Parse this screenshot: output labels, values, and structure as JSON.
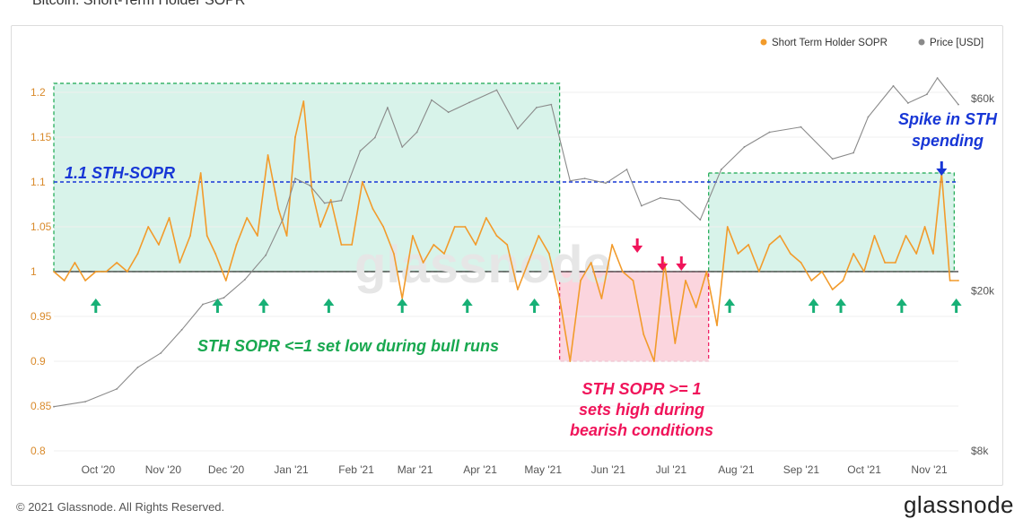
{
  "title": "Bitcoin: Short-Term Holder SOPR",
  "footer": {
    "copyright": "© 2021 Glassnode. All Rights Reserved.",
    "logo": "glassnode",
    "watermark": "glassnode"
  },
  "legend": {
    "items": [
      {
        "label": "Short Term Holder SOPR",
        "color": "#f29b2b"
      },
      {
        "label": "Price [USD]",
        "color": "#8a8a8a"
      }
    ],
    "placement": "top-right"
  },
  "annotations": {
    "threshold_label": "1.1 STH-SOPR",
    "bull_label": "STH SOPR <=1 set low during bull runs",
    "bear_label_lines": [
      "STH SOPR >= 1",
      "sets high during",
      "bearish conditions"
    ],
    "spike_label_lines": [
      "Spike in STH",
      "spending"
    ]
  },
  "chart_data": {
    "type": "line",
    "title": "",
    "x_ticks": [
      "Oct '20",
      "Nov '20",
      "Dec '20",
      "Jan '21",
      "Feb '21",
      "Mar '21",
      "Apr '21",
      "May '21",
      "Jun '21",
      "Jul '21",
      "Aug '21",
      "Sep '21",
      "Oct '21",
      "Nov '21"
    ],
    "x_range": [
      "2020-09-15",
      "2021-11-20"
    ],
    "y_left": {
      "ticks": [
        "0.8",
        "0.85",
        "0.9",
        "0.95",
        "1",
        "1.05",
        "1.1",
        "1.15",
        "1.2"
      ],
      "range": [
        0.8,
        1.2
      ]
    },
    "y_right": {
      "ticks": [
        "$8k",
        "$20k",
        "$60k"
      ],
      "scale": "log"
    },
    "reference_lines": [
      {
        "value": 1.1,
        "style": "dashed",
        "color": "#1736d6"
      },
      {
        "value": 1.0,
        "style": "solid",
        "color": "#555555"
      }
    ],
    "series": [
      {
        "name": "Short Term Holder SOPR",
        "color": "#f29b2b",
        "axis": "left",
        "x": [
          "2020-09-15",
          "2020-09-20",
          "2020-09-25",
          "2020-09-30",
          "2020-10-05",
          "2020-10-10",
          "2020-10-15",
          "2020-10-20",
          "2020-10-25",
          "2020-10-30",
          "2020-11-04",
          "2020-11-09",
          "2020-11-14",
          "2020-11-19",
          "2020-11-24",
          "2020-11-27",
          "2020-12-01",
          "2020-12-06",
          "2020-12-11",
          "2020-12-16",
          "2020-12-21",
          "2020-12-26",
          "2020-12-31",
          "2021-01-04",
          "2021-01-08",
          "2021-01-12",
          "2021-01-16",
          "2021-01-20",
          "2021-01-25",
          "2021-01-30",
          "2021-02-04",
          "2021-02-09",
          "2021-02-14",
          "2021-02-19",
          "2021-02-24",
          "2021-02-28",
          "2021-03-05",
          "2021-03-10",
          "2021-03-15",
          "2021-03-20",
          "2021-03-25",
          "2021-03-30",
          "2021-04-04",
          "2021-04-09",
          "2021-04-14",
          "2021-04-19",
          "2021-04-24",
          "2021-04-29",
          "2021-05-04",
          "2021-05-09",
          "2021-05-14",
          "2021-05-19",
          "2021-05-24",
          "2021-05-29",
          "2021-06-03",
          "2021-06-08",
          "2021-06-13",
          "2021-06-18",
          "2021-06-23",
          "2021-06-28",
          "2021-07-03",
          "2021-07-08",
          "2021-07-13",
          "2021-07-18",
          "2021-07-23",
          "2021-07-28",
          "2021-08-02",
          "2021-08-07",
          "2021-08-12",
          "2021-08-17",
          "2021-08-22",
          "2021-08-27",
          "2021-09-01",
          "2021-09-06",
          "2021-09-11",
          "2021-09-16",
          "2021-09-21",
          "2021-09-26",
          "2021-10-01",
          "2021-10-06",
          "2021-10-11",
          "2021-10-16",
          "2021-10-21",
          "2021-10-26",
          "2021-10-31",
          "2021-11-04",
          "2021-11-08",
          "2021-11-12",
          "2021-11-16",
          "2021-11-20"
        ],
        "y": [
          1.0,
          0.99,
          1.01,
          0.99,
          1.0,
          1.0,
          1.01,
          1.0,
          1.02,
          1.05,
          1.03,
          1.06,
          1.01,
          1.04,
          1.11,
          1.04,
          1.02,
          0.99,
          1.03,
          1.06,
          1.04,
          1.13,
          1.07,
          1.04,
          1.15,
          1.19,
          1.09,
          1.05,
          1.08,
          1.03,
          1.03,
          1.1,
          1.07,
          1.05,
          1.02,
          0.97,
          1.04,
          1.01,
          1.03,
          1.02,
          1.05,
          1.05,
          1.03,
          1.06,
          1.04,
          1.03,
          0.98,
          1.01,
          1.04,
          1.02,
          0.97,
          0.9,
          0.99,
          1.01,
          0.97,
          1.03,
          1.0,
          0.99,
          0.93,
          0.9,
          1.01,
          0.92,
          0.99,
          0.96,
          1.0,
          0.94,
          1.05,
          1.02,
          1.03,
          1.0,
          1.03,
          1.04,
          1.02,
          1.01,
          0.99,
          1.0,
          0.98,
          0.99,
          1.02,
          1.0,
          1.04,
          1.01,
          1.01,
          1.04,
          1.02,
          1.05,
          1.02,
          1.11,
          0.99,
          0.99
        ]
      },
      {
        "name": "Price [USD]",
        "color": "#8a8a8a",
        "axis": "right",
        "x": [
          "2020-09-15",
          "2020-09-30",
          "2020-10-15",
          "2020-10-25",
          "2020-11-05",
          "2020-11-15",
          "2020-11-25",
          "2020-12-05",
          "2020-12-15",
          "2020-12-25",
          "2021-01-02",
          "2021-01-08",
          "2021-01-15",
          "2021-01-22",
          "2021-01-30",
          "2021-02-08",
          "2021-02-15",
          "2021-02-21",
          "2021-02-28",
          "2021-03-07",
          "2021-03-14",
          "2021-03-22",
          "2021-04-01",
          "2021-04-14",
          "2021-04-24",
          "2021-05-03",
          "2021-05-10",
          "2021-05-19",
          "2021-05-26",
          "2021-06-05",
          "2021-06-15",
          "2021-06-22",
          "2021-07-01",
          "2021-07-10",
          "2021-07-20",
          "2021-07-30",
          "2021-08-10",
          "2021-08-22",
          "2021-09-06",
          "2021-09-21",
          "2021-10-01",
          "2021-10-08",
          "2021-10-20",
          "2021-10-27",
          "2021-11-05",
          "2021-11-10",
          "2021-11-20"
        ],
        "y": [
          10300,
          10600,
          11400,
          12900,
          14000,
          16000,
          18500,
          19200,
          21300,
          24500,
          30000,
          38000,
          36500,
          33000,
          33500,
          44500,
          48000,
          57000,
          45500,
          49500,
          59500,
          55500,
          58700,
          63000,
          50500,
          57000,
          58000,
          37500,
          38000,
          37000,
          40000,
          32500,
          34000,
          33500,
          30000,
          40000,
          45500,
          49500,
          51000,
          42500,
          44000,
          54000,
          64500,
          58500,
          61500,
          67500,
          58000
        ]
      }
    ],
    "shaded_regions": [
      {
        "from": "2020-09-15",
        "to": "2021-05-14",
        "y_range": [
          1.0,
          1.21
        ],
        "color": "#d8f3ea",
        "border": "#18a84f"
      },
      {
        "from": "2021-05-14",
        "to": "2021-07-24",
        "y_range": [
          0.9,
          1.0
        ],
        "color": "#fbd5de",
        "border": "#f0145a"
      },
      {
        "from": "2021-07-24",
        "to": "2021-11-18",
        "y_range": [
          1.0,
          1.11
        ],
        "color": "#d8f3ea",
        "border": "#18a84f"
      }
    ],
    "markers": {
      "low_arrows_green": [
        "2020-10-05",
        "2020-12-02",
        "2020-12-24",
        "2021-01-24",
        "2021-02-28",
        "2021-03-31",
        "2021-05-02",
        "2021-08-03",
        "2021-09-12",
        "2021-09-25",
        "2021-10-24",
        "2021-11-19"
      ],
      "high_arrows_pink": [
        "2021-06-20",
        "2021-07-02",
        "2021-07-11"
      ],
      "spike_arrow_blue": "2021-11-12"
    }
  }
}
